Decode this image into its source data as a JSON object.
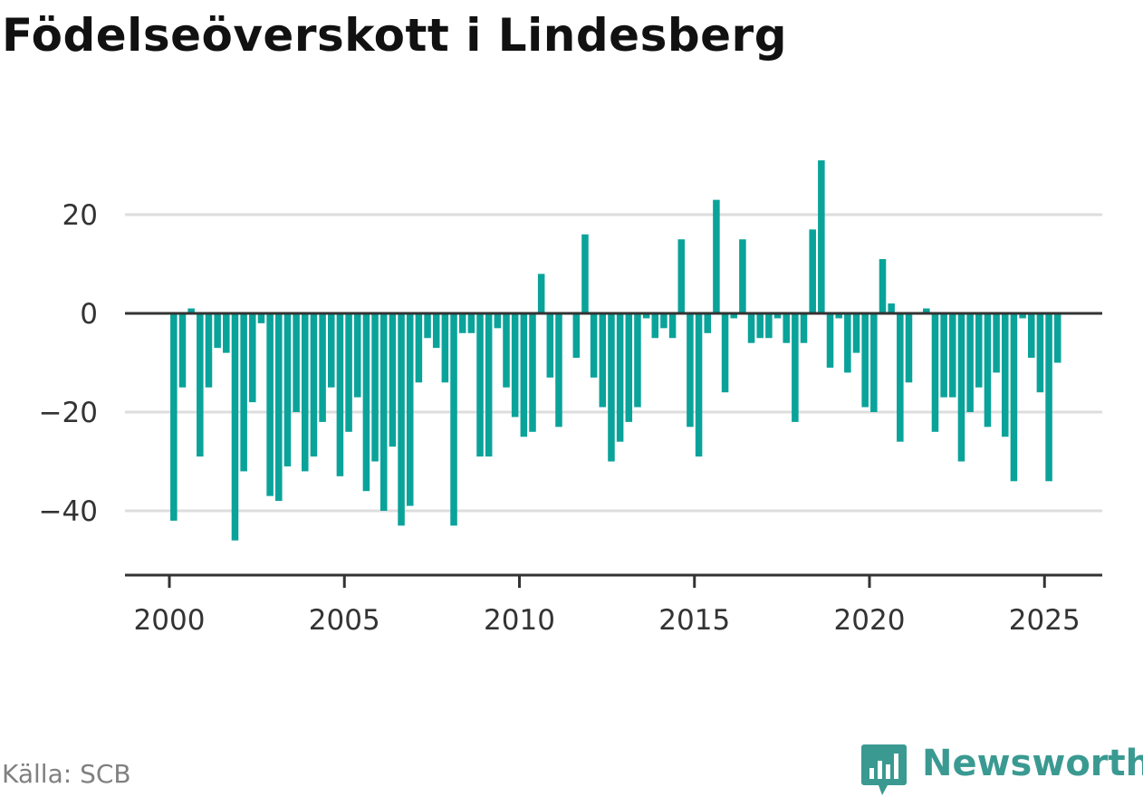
{
  "title": "Födelseöverskott i Lindesberg",
  "source": "Källa: SCB",
  "brand": {
    "name": "Newsworthy",
    "icon": "newsworthy-chart-bubble-icon",
    "color": "#3a9a92"
  },
  "chart_data": {
    "type": "bar",
    "bar_color": "#0aa39a",
    "grid": true,
    "x_ticks": [
      "2000",
      "2005",
      "2010",
      "2015",
      "2020",
      "2025"
    ],
    "y_ticks": [
      "20",
      "0",
      "−20",
      "−40"
    ],
    "ylim": [
      -52,
      33
    ],
    "x_range": [
      1999.6,
      2026.75
    ],
    "series": [
      {
        "x_start": 2000.125,
        "x_step": 0.25,
        "values": [
          -42,
          -15,
          1,
          -29,
          -15,
          -7,
          -8,
          -46,
          -32,
          -18,
          -2,
          -37,
          -38,
          -31,
          -20,
          -32,
          -29,
          -22,
          -15,
          -33,
          -24,
          -17,
          -36,
          -30,
          -40,
          -27,
          -43,
          -39,
          -14,
          -5,
          -7,
          -14,
          -43,
          -4,
          -4,
          -29,
          -29,
          -3,
          -15,
          -21,
          -25,
          -24,
          8,
          -13,
          -23,
          0,
          -9,
          16,
          -13,
          -19,
          -30,
          -26,
          -22,
          -19,
          -1,
          -5,
          -3,
          -5,
          15,
          -23,
          -29,
          -4,
          23,
          -16,
          -1,
          15,
          -6,
          -5,
          -5,
          -1,
          -6,
          -22,
          -6,
          17,
          31,
          -11,
          -1,
          -12,
          -8,
          -19,
          -20,
          11,
          2,
          -26,
          -14,
          0,
          1,
          -24,
          -17,
          -17,
          -30,
          -20,
          -15,
          -23,
          -12,
          -25,
          -34,
          -1,
          -9,
          -16,
          -34,
          -10
        ]
      }
    ]
  }
}
